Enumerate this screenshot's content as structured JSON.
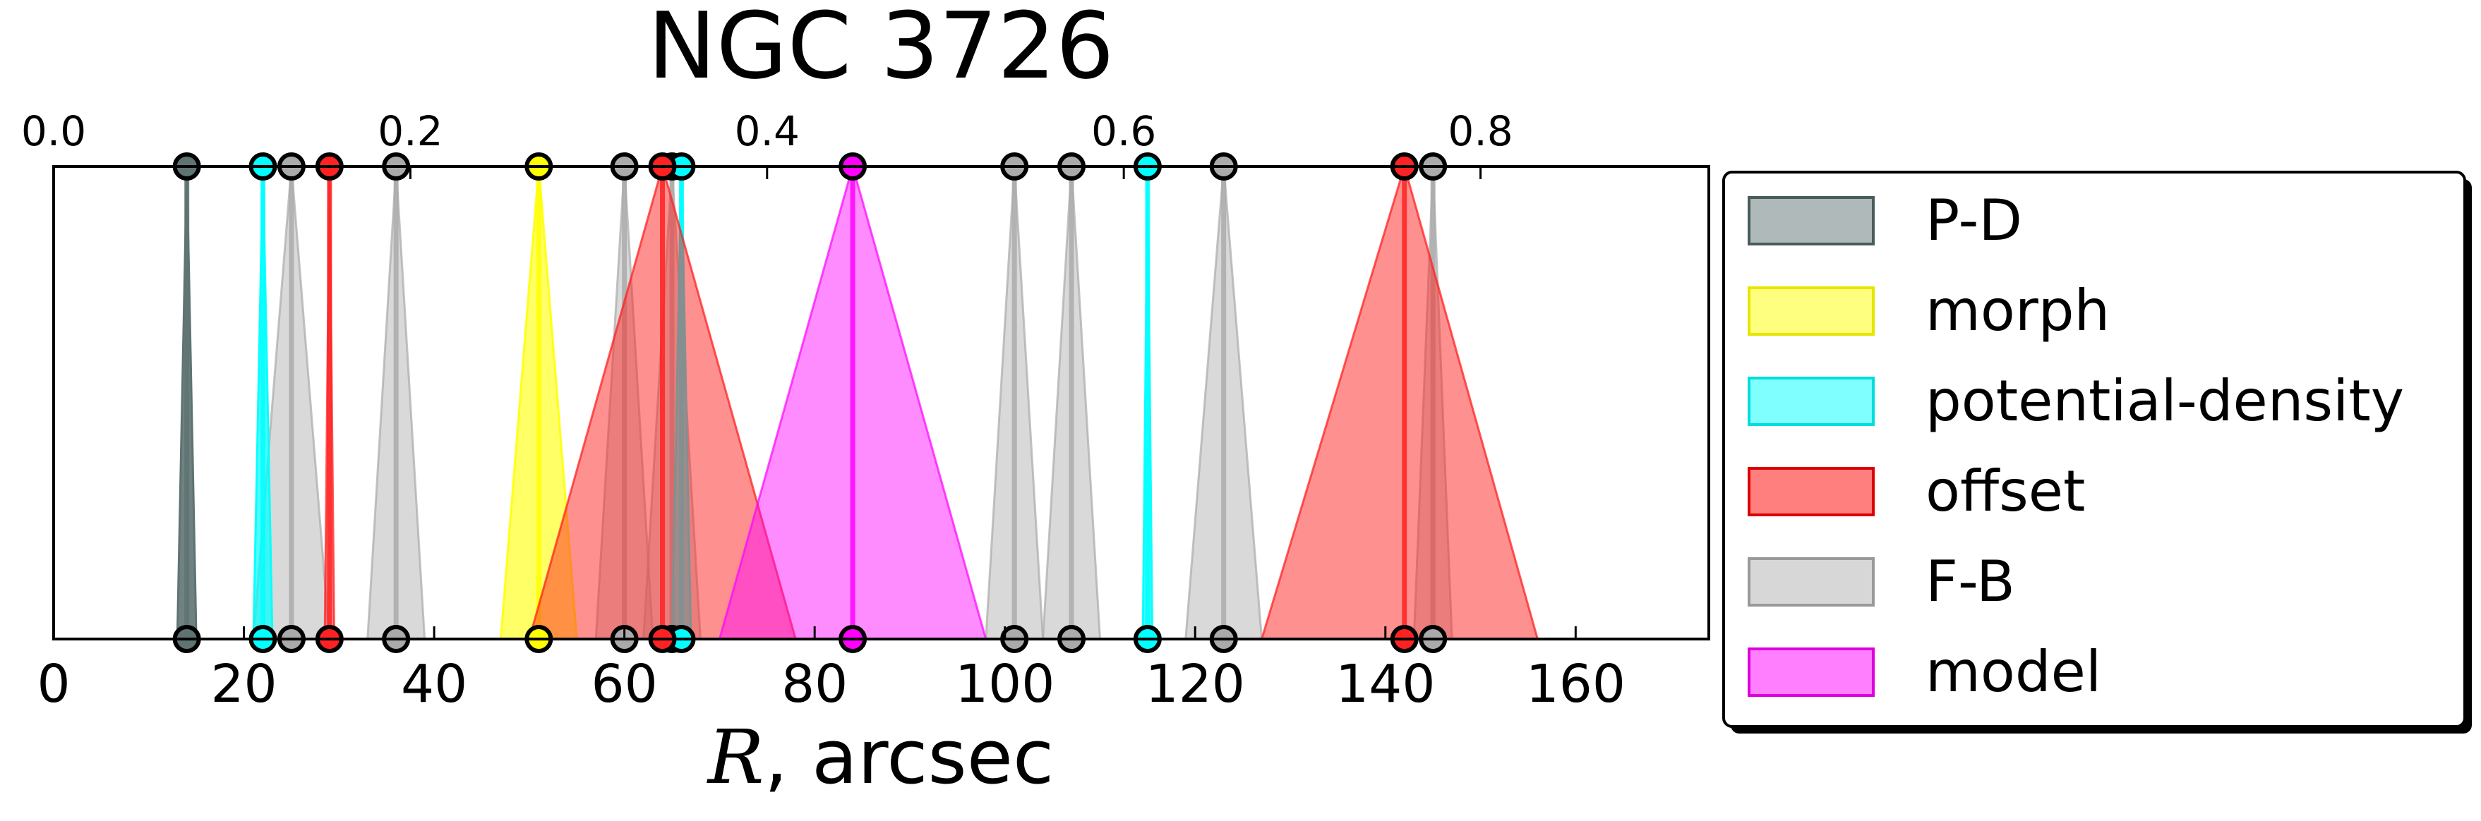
{
  "chart_data": {
    "type": "area",
    "title": "NGC 3726",
    "xlabel_var": "R",
    "xlabel_rest": ", arcsec",
    "xlim": [
      0,
      174
    ],
    "xticks": [
      0,
      20,
      40,
      60,
      80,
      100,
      120,
      140,
      160
    ],
    "top_ticks": [
      "0.0",
      "0.2",
      "0.4",
      "0.6",
      "0.8"
    ],
    "top_tick_positions": [
      0,
      37.5,
      75,
      112.5,
      150
    ],
    "legend": {
      "placement": "outside-right",
      "items": [
        {
          "label": "P-D",
          "color": "#5f7373",
          "border": "#495c5c"
        },
        {
          "label": "morph",
          "color": "#ffff00",
          "border": "#e6e600"
        },
        {
          "label": "potential-density",
          "color": "#00ffff",
          "border": "#00dddd"
        },
        {
          "label": "offset",
          "color": "#ff0000",
          "border": "#dd0000"
        },
        {
          "label": "F-B",
          "color": "#b0b0b0",
          "border": "#999999"
        },
        {
          "label": "model",
          "color": "#ff00ff",
          "border": "#dd00dd"
        }
      ]
    },
    "series": [
      {
        "name": "F-B",
        "color": "#aaaaaa",
        "opacity": 0.45,
        "points": [
          [
            25,
            21,
            29
          ],
          [
            36,
            33,
            39
          ],
          [
            60,
            57,
            63
          ],
          [
            65,
            62,
            68
          ],
          [
            101,
            98,
            104
          ],
          [
            107,
            104,
            110
          ],
          [
            123,
            119,
            127
          ],
          [
            145,
            143,
            147
          ]
        ]
      },
      {
        "name": "P-D",
        "color": "#5f7373",
        "opacity": 0.9,
        "points": [
          [
            14,
            13,
            15
          ]
        ]
      },
      {
        "name": "morph",
        "color": "#ffff00",
        "opacity": 0.6,
        "points": [
          [
            51,
            47,
            55
          ]
        ]
      },
      {
        "name": "potential-density",
        "color": "#00ffff",
        "opacity": 0.7,
        "points": [
          [
            22,
            21,
            23
          ],
          [
            66,
            65,
            67
          ],
          [
            115,
            114.5,
            115.5
          ]
        ]
      },
      {
        "name": "offset",
        "color": "#ff2222",
        "opacity": 0.5,
        "points": [
          [
            29,
            28.5,
            29.5
          ],
          [
            64,
            50,
            78
          ],
          [
            142,
            127,
            156
          ]
        ]
      },
      {
        "name": "model",
        "color": "#ff00ff",
        "opacity": 0.45,
        "points": [
          [
            84,
            70,
            98
          ]
        ]
      }
    ]
  }
}
